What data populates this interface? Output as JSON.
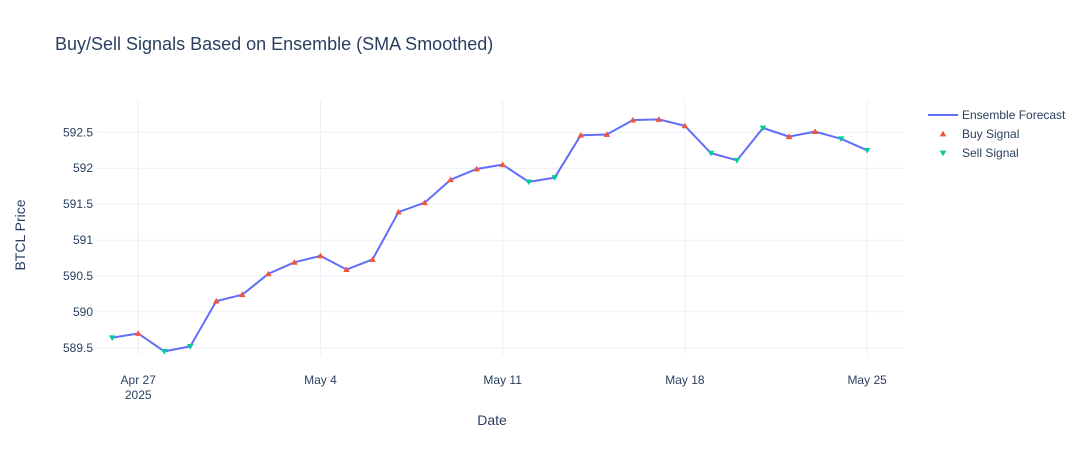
{
  "chart_data": {
    "type": "line",
    "title": "Buy/Sell Signals Based on Ensemble (SMA Smoothed)",
    "xlabel": "Date",
    "ylabel": "BTCL Price",
    "x_tick_labels": [
      {
        "date": "2025-04-27",
        "label": "Apr 27",
        "sublabel": "2025"
      },
      {
        "date": "2025-05-04",
        "label": "May 4",
        "sublabel": ""
      },
      {
        "date": "2025-05-11",
        "label": "May 11",
        "sublabel": ""
      },
      {
        "date": "2025-05-18",
        "label": "May 18",
        "sublabel": ""
      },
      {
        "date": "2025-05-25",
        "label": "May 25",
        "sublabel": ""
      }
    ],
    "y_ticks": [
      589.5,
      590,
      590.5,
      591,
      591.5,
      592,
      592.5
    ],
    "y_tick_labels": [
      "589.5",
      "590",
      "590.5",
      "591",
      "591.5",
      "592",
      "592.5"
    ],
    "xlim": [
      "2025-04-25T10:00",
      "2025-05-26T10:00"
    ],
    "ylim": [
      589.4,
      592.95
    ],
    "grid": true,
    "legend_position": "top-right",
    "series": [
      {
        "name": "Ensemble Forecast",
        "kind": "line",
        "color": "#636efa",
        "x": [
          "2025-04-26",
          "2025-04-27",
          "2025-04-28",
          "2025-04-29",
          "2025-04-30",
          "2025-05-01",
          "2025-05-02",
          "2025-05-03",
          "2025-05-04",
          "2025-05-05",
          "2025-05-06",
          "2025-05-07",
          "2025-05-08",
          "2025-05-09",
          "2025-05-10",
          "2025-05-11",
          "2025-05-12",
          "2025-05-13",
          "2025-05-14",
          "2025-05-15",
          "2025-05-16",
          "2025-05-17",
          "2025-05-18",
          "2025-05-19",
          "2025-05-20",
          "2025-05-21",
          "2025-05-22",
          "2025-05-23",
          "2025-05-24",
          "2025-05-25"
        ],
        "y": [
          589.64,
          589.7,
          589.45,
          589.52,
          590.15,
          590.24,
          590.53,
          590.69,
          590.78,
          590.59,
          590.73,
          591.39,
          591.52,
          591.84,
          591.99,
          592.05,
          591.81,
          591.87,
          592.46,
          592.47,
          592.67,
          592.68,
          592.59,
          592.21,
          592.11,
          592.56,
          592.44,
          592.51,
          592.41,
          592.25
        ]
      },
      {
        "name": "Buy Signal",
        "kind": "marker",
        "symbol": "triangle-up",
        "color": "#ef553b",
        "x": [
          "2025-04-27",
          "2025-04-30",
          "2025-05-01",
          "2025-05-02",
          "2025-05-03",
          "2025-05-04",
          "2025-05-05",
          "2025-05-06",
          "2025-05-07",
          "2025-05-08",
          "2025-05-09",
          "2025-05-10",
          "2025-05-11",
          "2025-05-14",
          "2025-05-15",
          "2025-05-16",
          "2025-05-17",
          "2025-05-18",
          "2025-05-22",
          "2025-05-23"
        ],
        "y": [
          589.7,
          590.15,
          590.24,
          590.53,
          590.69,
          590.78,
          590.59,
          590.73,
          591.39,
          591.52,
          591.84,
          591.99,
          592.05,
          592.46,
          592.47,
          592.67,
          592.68,
          592.59,
          592.44,
          592.51
        ]
      },
      {
        "name": "Sell Signal",
        "kind": "marker",
        "symbol": "triangle-down",
        "color": "#00cc96",
        "x": [
          "2025-04-26",
          "2025-04-28",
          "2025-04-29",
          "2025-05-12",
          "2025-05-13",
          "2025-05-19",
          "2025-05-20",
          "2025-05-21",
          "2025-05-24",
          "2025-05-25"
        ],
        "y": [
          589.64,
          589.45,
          589.52,
          591.81,
          591.87,
          592.21,
          592.11,
          592.56,
          592.41,
          592.25
        ]
      }
    ]
  }
}
